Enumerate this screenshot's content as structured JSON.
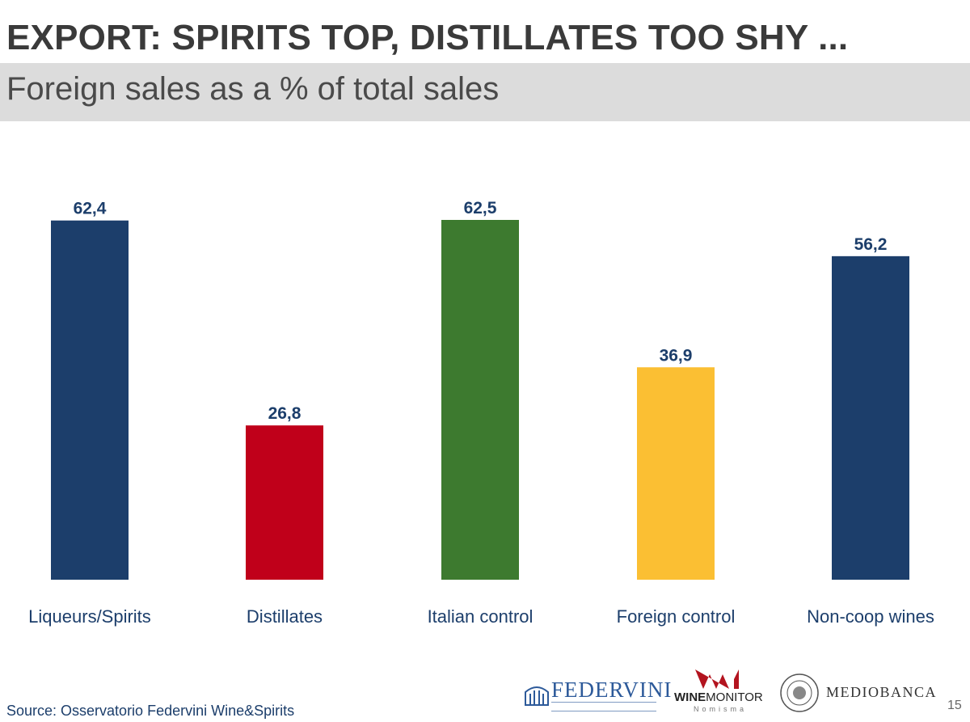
{
  "header": {
    "title": "EXPORT: SPIRITS TOP, DISTILLATES TOO SHY ...",
    "subtitle": "Foreign sales as a % of total sales"
  },
  "chart_data": {
    "type": "bar",
    "title": "Foreign sales as a % of total sales",
    "xlabel": "",
    "ylabel": "",
    "ylim": [
      0,
      62.5
    ],
    "grid": false,
    "categories": [
      "Liqueurs/Spirits",
      "Distillates",
      "Italian control",
      "Foreign control",
      "Non-coop wines"
    ],
    "values": [
      62.4,
      26.8,
      62.5,
      36.9,
      56.2
    ],
    "value_labels": [
      "62,4",
      "26,8",
      "62,5",
      "36,9",
      "56,2"
    ],
    "colors": [
      "#1c3e6b",
      "#c0001a",
      "#3d7a2f",
      "#fbbf33",
      "#1c3e6b"
    ]
  },
  "footer": {
    "source": "Source: Osservatorio Federvini Wine&Spirits",
    "page_number": "15"
  },
  "logos": {
    "federvini": "FEDERVINI",
    "winemonitor_bold": "WINE",
    "winemonitor_light": "MONITOR",
    "winemonitor_sub": "Nomisma",
    "mediobanca": "MEDIOBANCA"
  }
}
